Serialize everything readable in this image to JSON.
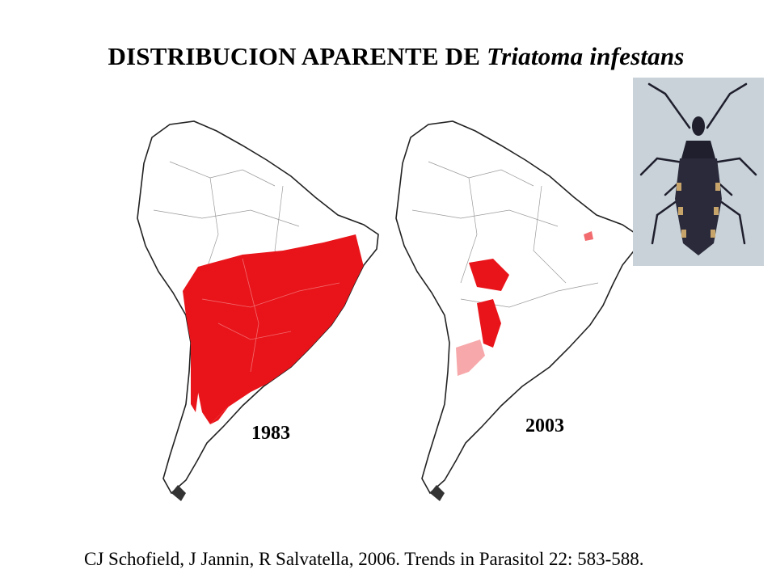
{
  "slide": {
    "title_main": "DISTRIBUCION APARENTE DE ",
    "title_species": "Triatoma infestans",
    "citation": "CJ Schofield, J Jannin, R Salvatella, 2006. Trends in Parasitol 22: 583-588."
  },
  "maps": [
    {
      "year": "1983",
      "infestation_color": "#e8141a",
      "extent": "widespread"
    },
    {
      "year": "2003",
      "infestation_color": "#e8141a",
      "extent": "reduced"
    }
  ],
  "photo": {
    "subject": "triatoma-infestans-insect"
  }
}
